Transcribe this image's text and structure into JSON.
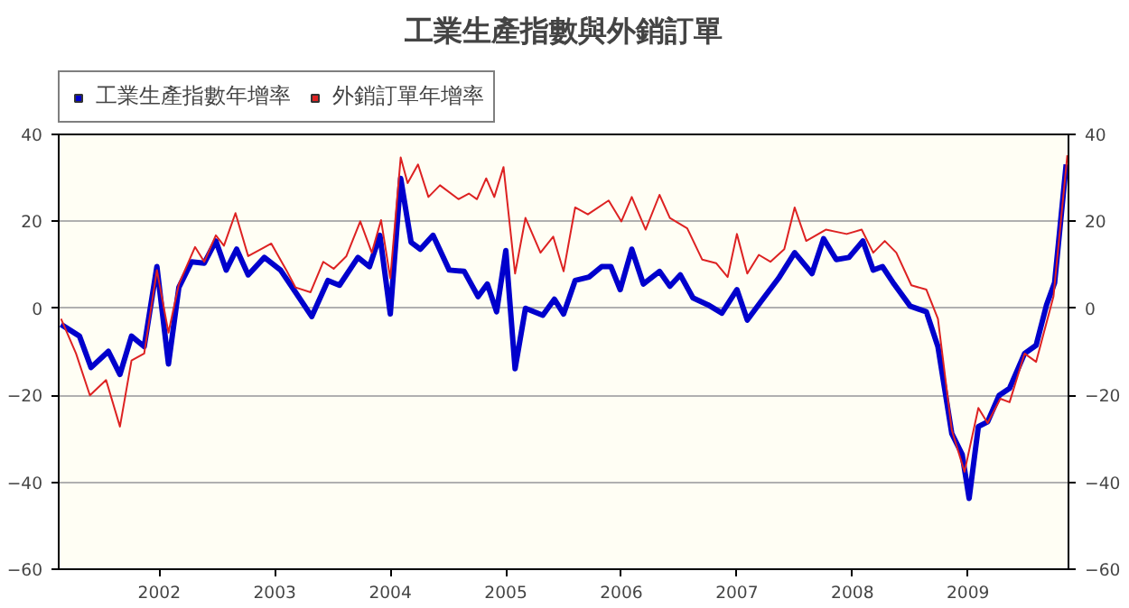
{
  "chart_data": {
    "type": "line",
    "title": "工業生產指數與外銷訂單",
    "xlim": [
      2001.13,
      2009.87
    ],
    "xticks": [
      2002,
      2003,
      2004,
      2005,
      2006,
      2007,
      2008,
      2009
    ],
    "ylim": [
      -60,
      40
    ],
    "yticks": [
      -60,
      -40,
      -20,
      0,
      20,
      40
    ],
    "y2lim": [
      -60,
      40
    ],
    "y2ticks": [
      -60,
      -40,
      -20,
      0,
      20,
      40
    ],
    "grid": "y",
    "legend": "top left",
    "marker": "none",
    "line_style": "solid",
    "series": [
      {
        "name": "工業生產指數年增率",
        "color": "#0000cc",
        "x": [
          2001.15,
          2001.31,
          2001.41,
          2001.56,
          2001.66,
          2001.76,
          2001.87,
          2001.98,
          2002.08,
          2002.17,
          2002.28,
          2002.39,
          2002.49,
          2002.58,
          2002.67,
          2002.77,
          2002.91,
          2003.05,
          2003.18,
          2003.32,
          2003.46,
          2003.56,
          2003.72,
          2003.82,
          2003.91,
          2004.0,
          2004.09,
          2004.18,
          2004.26,
          2004.37,
          2004.51,
          2004.64,
          2004.76,
          2004.84,
          2004.92,
          2005.0,
          2005.08,
          2005.17,
          2005.32,
          2005.42,
          2005.5,
          2005.6,
          2005.72,
          2005.83,
          2005.91,
          2005.99,
          2006.09,
          2006.19,
          2006.33,
          2006.42,
          2006.51,
          2006.62,
          2006.75,
          2006.87,
          2007.0,
          2007.09,
          2007.21,
          2007.36,
          2007.5,
          2007.65,
          2007.75,
          2007.86,
          2007.97,
          2008.09,
          2008.18,
          2008.26,
          2008.36,
          2008.5,
          2008.64,
          2008.74,
          2008.86,
          2008.95,
          2009.01,
          2009.09,
          2009.17,
          2009.27,
          2009.36,
          2009.49,
          2009.59,
          2009.68,
          2009.75,
          2009.85
        ],
        "values": [
          -3.7,
          -6.4,
          -13.6,
          -9.9,
          -15.2,
          -6.4,
          -8.8,
          9.6,
          -12.8,
          4.8,
          10.7,
          10.4,
          15.5,
          8.8,
          13.6,
          7.7,
          11.7,
          8.8,
          3.7,
          -1.9,
          6.4,
          5.3,
          11.7,
          9.6,
          16.8,
          -1.3,
          29.9,
          15.2,
          13.6,
          16.8,
          8.8,
          8.5,
          2.7,
          5.6,
          -0.8,
          13.3,
          -13.9,
          0,
          -1.6,
          2.1,
          -1.3,
          6.4,
          7.2,
          9.6,
          9.6,
          4.3,
          13.6,
          5.6,
          8.5,
          5.1,
          7.7,
          2.4,
          0.8,
          -1.1,
          4.3,
          -2.7,
          1.6,
          6.9,
          12.8,
          8,
          16,
          11.2,
          11.7,
          15.5,
          8.8,
          9.6,
          5.6,
          0.5,
          -0.8,
          -8.8,
          -28.8,
          -33.6,
          -43.7,
          -27.2,
          -26.1,
          -20,
          -18.4,
          -10.4,
          -8.5,
          0.8,
          5.9,
          33.1
        ]
      },
      {
        "name": "外銷訂單年增率",
        "color": "#dd2222",
        "x": [
          2001.15,
          2001.28,
          2001.4,
          2001.54,
          2001.66,
          2001.76,
          2001.87,
          2001.98,
          2002.08,
          2002.17,
          2002.31,
          2002.39,
          2002.49,
          2002.56,
          2002.66,
          2002.77,
          2002.9,
          2002.97,
          2003.1,
          2003.18,
          2003.31,
          2003.42,
          2003.51,
          2003.62,
          2003.74,
          2003.84,
          2003.92,
          2004.0,
          2004.09,
          2004.15,
          2004.24,
          2004.33,
          2004.43,
          2004.59,
          2004.68,
          2004.75,
          2004.83,
          2004.9,
          2004.98,
          2005.08,
          2005.17,
          2005.3,
          2005.41,
          2005.5,
          2005.6,
          2005.71,
          2005.89,
          2006.0,
          2006.09,
          2006.21,
          2006.33,
          2006.42,
          2006.57,
          2006.7,
          2006.82,
          2006.92,
          2007.0,
          2007.09,
          2007.19,
          2007.29,
          2007.41,
          2007.5,
          2007.6,
          2007.77,
          2007.95,
          2008.08,
          2008.18,
          2008.28,
          2008.38,
          2008.51,
          2008.64,
          2008.74,
          2008.86,
          2008.97,
          2009.09,
          2009.17,
          2009.28,
          2009.36,
          2009.49,
          2009.59,
          2009.74,
          2009.86
        ],
        "values": [
          -2.4,
          -10.4,
          -20,
          -16.5,
          -27.2,
          -12,
          -10.4,
          8.8,
          -5.6,
          5.6,
          14.1,
          10.7,
          16.8,
          14.4,
          21.9,
          12,
          13.9,
          14.9,
          8.8,
          4.8,
          3.7,
          10.7,
          9.1,
          12,
          20,
          12.8,
          20.3,
          6.9,
          34.7,
          28.8,
          33.1,
          25.6,
          28.3,
          25.1,
          26.4,
          25.1,
          29.9,
          25.6,
          32.5,
          8,
          20.8,
          12.8,
          16.5,
          8.5,
          23.2,
          21.6,
          24.8,
          20,
          25.6,
          18.1,
          26.1,
          20.8,
          18.4,
          11.2,
          10.4,
          7.2,
          17.1,
          8,
          12.3,
          10.7,
          13.6,
          23.2,
          15.5,
          18.1,
          17.1,
          18.1,
          12.8,
          15.5,
          12.8,
          5.3,
          4.3,
          -2.4,
          -28,
          -37.6,
          -22.9,
          -26.4,
          -20.8,
          -21.6,
          -10.4,
          -12.3,
          2.7,
          35.2
        ]
      }
    ]
  }
}
